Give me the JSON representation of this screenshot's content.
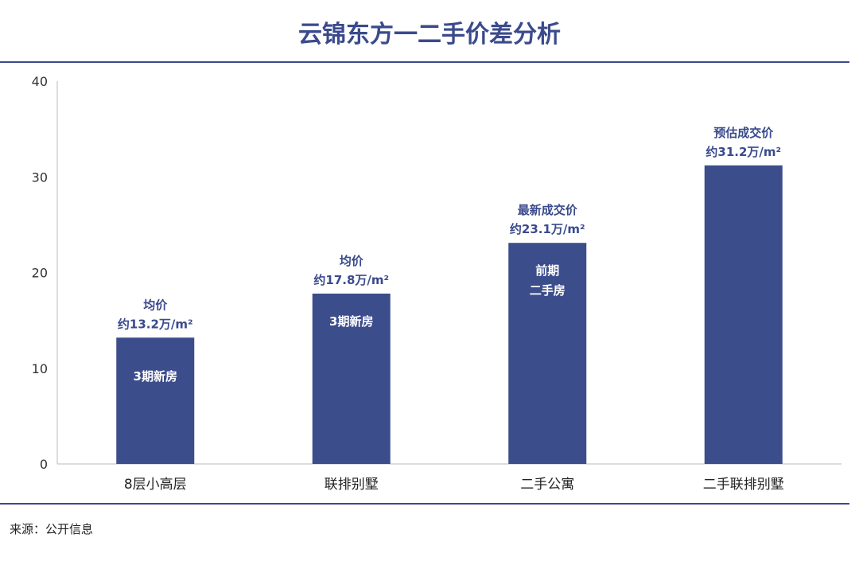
{
  "chart_data": {
    "type": "bar",
    "title": "云锦东方一二手价差分析",
    "categories": [
      "8层小高层",
      "联排别墅",
      "二手公寓",
      "二手联排别墅"
    ],
    "values": [
      13.2,
      17.8,
      23.1,
      31.2
    ],
    "ylim": [
      0,
      40
    ],
    "yticks": [
      "0",
      "10",
      "20",
      "30",
      "40"
    ],
    "xlabel": "",
    "ylabel": "",
    "grid": false,
    "bar_color": "#3c4d8c",
    "label_color": "#3a4a8c",
    "annotations_above": [
      [
        "均价",
        "约13.2万/m²"
      ],
      [
        "均价",
        "约17.8万/m²"
      ],
      [
        "最新成交价",
        "约23.1万/m²"
      ],
      [
        "预估成交价",
        "约31.2万/m²"
      ]
    ],
    "annotations_inside": [
      [
        "3期新房"
      ],
      [
        "3期新房"
      ],
      [
        "前期",
        "二手房"
      ],
      []
    ]
  },
  "source": "来源：公开信息"
}
